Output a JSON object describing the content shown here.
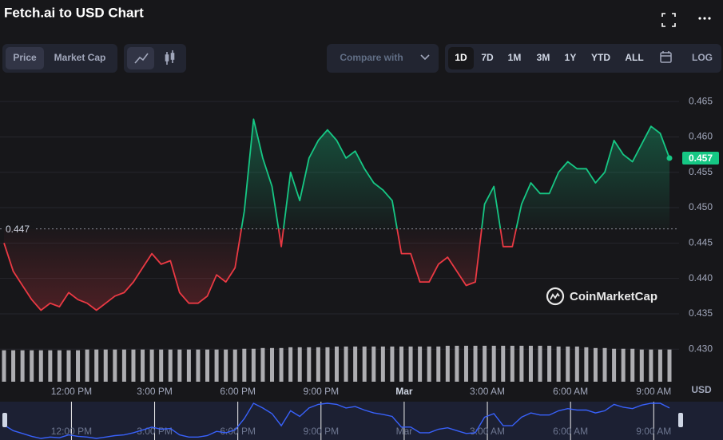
{
  "toolbar": {
    "tabs": [
      "Price",
      "Market Cap"
    ],
    "compare": "Compare with",
    "ranges": [
      "1D",
      "7D",
      "1M",
      "3M",
      "1Y",
      "YTD",
      "ALL"
    ],
    "log": "LOG"
  },
  "chart_data": {
    "type": "line",
    "title": "Fetch.ai to USD Chart",
    "currency": "USD",
    "watermark": "CoinMarketCap",
    "categories": [
      null,
      null,
      null,
      null,
      null,
      null,
      "12:00 PM",
      null,
      null,
      null,
      null,
      null,
      null,
      null,
      null,
      "3:00 PM",
      null,
      null,
      null,
      null,
      null,
      null,
      null,
      null,
      "6:00 PM",
      null,
      null,
      null,
      null,
      null,
      null,
      null,
      null,
      "9:00 PM",
      null,
      null,
      null,
      null,
      null,
      null,
      null,
      null,
      "Mar",
      null,
      null,
      null,
      null,
      null,
      null,
      null,
      null,
      "3:00 AM",
      null,
      null,
      null,
      null,
      null,
      null,
      null,
      null,
      "6:00 AM",
      null,
      null,
      null,
      null,
      null,
      null,
      null,
      null,
      "9:00 AM",
      null,
      null,
      null
    ],
    "series": [
      {
        "name": "Price",
        "values": [
          0.445,
          0.441,
          0.439,
          0.437,
          0.4355,
          0.4365,
          0.436,
          0.438,
          0.437,
          0.4365,
          0.4355,
          0.4365,
          0.4375,
          0.438,
          0.4395,
          0.4415,
          0.4435,
          0.442,
          0.4425,
          0.438,
          0.4365,
          0.4365,
          0.4375,
          0.4405,
          0.4395,
          0.4415,
          0.4495,
          0.4625,
          0.457,
          0.453,
          0.4445,
          0.455,
          0.451,
          0.457,
          0.4595,
          0.461,
          0.4595,
          0.457,
          0.458,
          0.4555,
          0.4535,
          0.4525,
          0.451,
          0.4435,
          0.4435,
          0.4395,
          0.4395,
          0.442,
          0.443,
          0.441,
          0.439,
          0.4395,
          0.4505,
          0.453,
          0.4445,
          0.4445,
          0.4505,
          0.4535,
          0.452,
          0.452,
          0.455,
          0.4565,
          0.4555,
          0.4555,
          0.4535,
          0.455,
          0.4595,
          0.4575,
          0.4565,
          0.459,
          0.4615,
          0.4605,
          0.457
        ]
      },
      {
        "name": "Volume",
        "values": [
          42,
          42,
          42,
          42,
          42,
          42,
          42,
          42,
          42,
          43,
          43,
          43,
          43,
          43,
          43,
          43,
          43,
          43,
          43,
          43,
          43,
          43,
          43,
          43,
          43,
          43,
          44,
          44,
          45,
          45,
          45,
          46,
          46,
          46,
          46,
          46,
          47,
          47,
          47,
          47,
          47,
          47,
          47,
          47,
          47,
          47,
          47,
          47,
          48,
          48,
          48,
          48,
          48,
          48,
          48,
          48,
          48,
          48,
          48,
          48,
          47,
          47,
          47,
          46,
          45,
          45,
          44,
          44,
          44,
          43,
          43,
          43,
          43
        ]
      }
    ],
    "open_price": 0.447,
    "last_price": 0.457,
    "up_color": "#16c784",
    "down_color": "#ea3943",
    "ylim": [
      0.4254,
      0.4675
    ],
    "yticks": [
      {
        "value": 0.43,
        "label": "0.430"
      },
      0.435,
      {
        "value": 0.44,
        "label": "0.440"
      },
      0.445,
      {
        "value": 0.45,
        "label": "0.450"
      },
      0.455,
      {
        "value": 0.46,
        "label": "0.460"
      },
      0.465
    ],
    "grid": true
  }
}
